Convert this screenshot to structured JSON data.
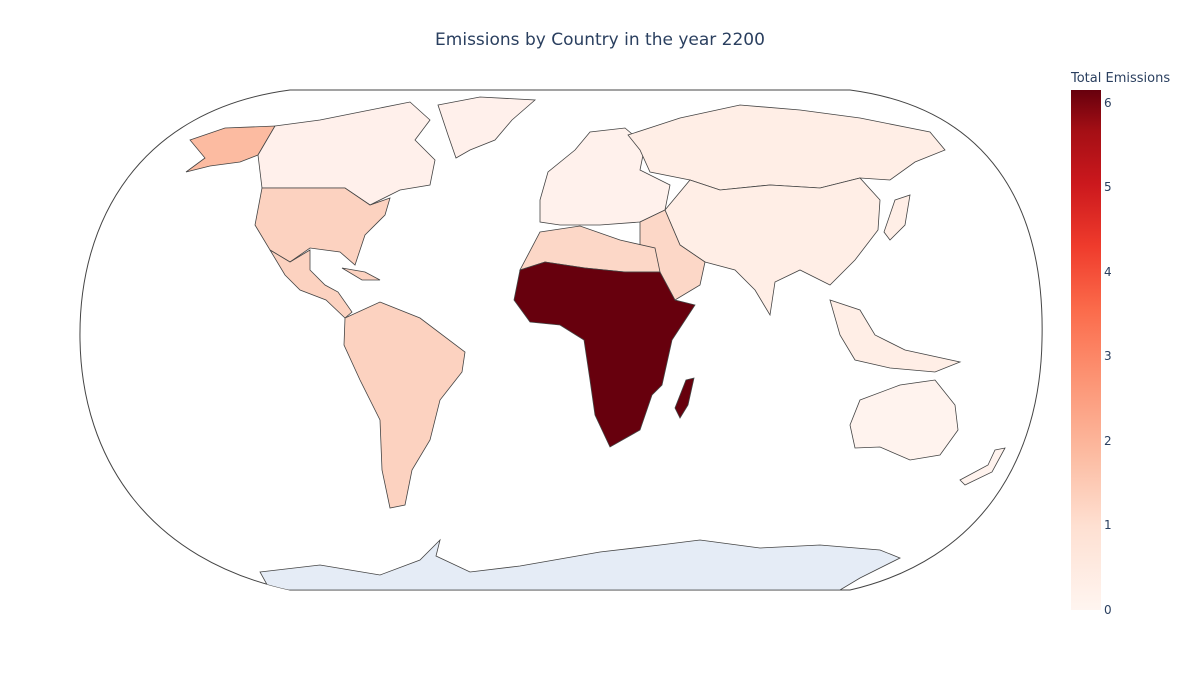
{
  "title": "Emissions by Country in the year 2200",
  "colorbar": {
    "title": "Total Emissions",
    "min": 0,
    "max": 6.15,
    "ticks": [
      "0",
      "1",
      "2",
      "3",
      "4",
      "5",
      "6"
    ],
    "tick_values": [
      0,
      1,
      2,
      3,
      4,
      5,
      6
    ]
  },
  "colors": {
    "ocean": "#ffffff",
    "antarctica": "#e5ecf6",
    "border": "#444444",
    "scale": [
      "#fff5f0",
      "#fee0d2",
      "#fcbba1",
      "#fc9272",
      "#fb6a4a",
      "#ef3b2c",
      "#cb181d",
      "#a50f15",
      "#67000d"
    ]
  },
  "chart_data": {
    "type": "choropleth",
    "projection": "natural earth",
    "regions": [
      {
        "name": "Canada",
        "value": 0.2
      },
      {
        "name": "Alaska",
        "value": 1.1
      },
      {
        "name": "Greenland",
        "value": 0.2
      },
      {
        "name": "United States",
        "value": 1.0
      },
      {
        "name": "Mexico",
        "value": 1.0
      },
      {
        "name": "Central America",
        "value": 1.0
      },
      {
        "name": "Caribbean",
        "value": 1.0
      },
      {
        "name": "South America",
        "value": 1.0
      },
      {
        "name": "North Africa",
        "value": 0.8
      },
      {
        "name": "Sub-Saharan Africa",
        "value": 6.1
      },
      {
        "name": "Madagascar",
        "value": 6.1
      },
      {
        "name": "Europe",
        "value": 0.2
      },
      {
        "name": "Middle East",
        "value": 0.8
      },
      {
        "name": "Russia",
        "value": 0.4
      },
      {
        "name": "Asia",
        "value": 0.4
      },
      {
        "name": "Southeast Asia",
        "value": 0.4
      },
      {
        "name": "Australia",
        "value": 0.2
      },
      {
        "name": "New Zealand",
        "value": 0.2
      }
    ]
  }
}
